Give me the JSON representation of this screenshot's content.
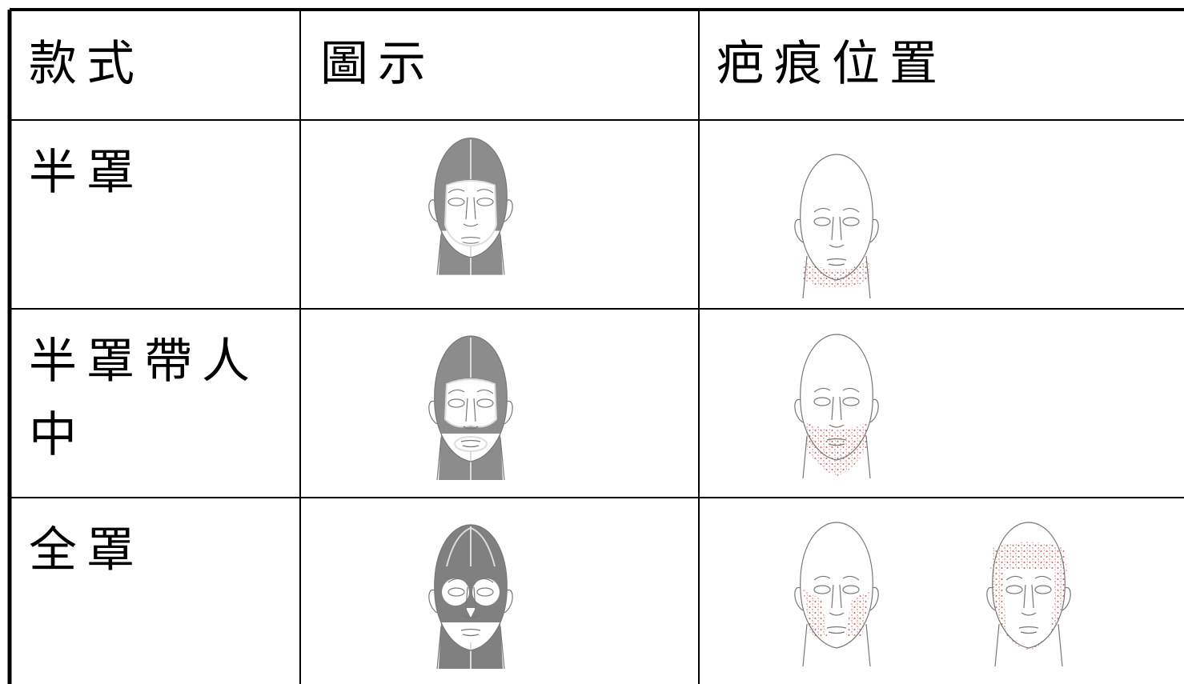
{
  "table": {
    "header": [
      "款式",
      "圖示",
      "疤痕位置"
    ],
    "rows": [
      [
        "半罩"
      ],
      [
        "半罩帶人中"
      ],
      [
        "全罩"
      ]
    ]
  }
}
